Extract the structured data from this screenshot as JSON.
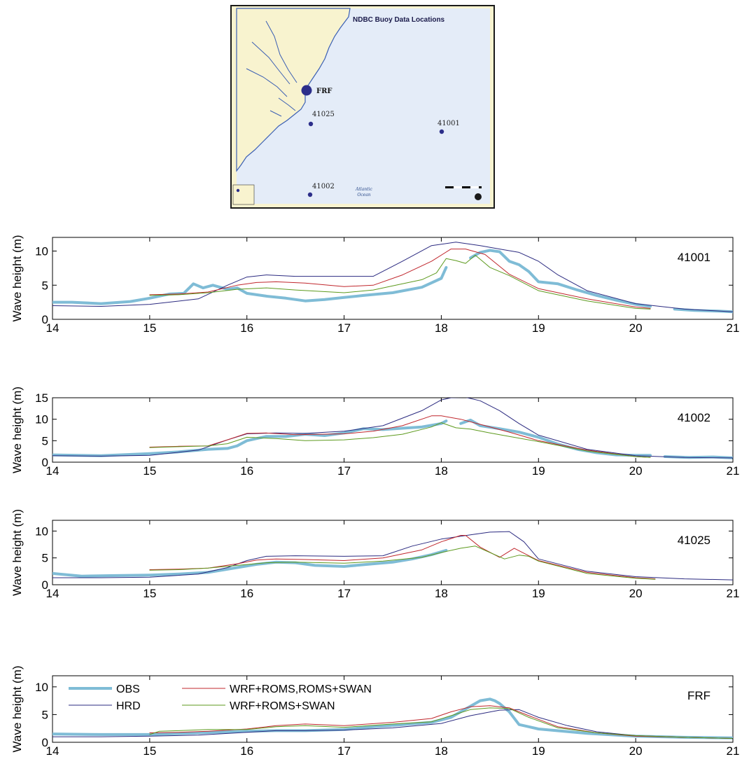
{
  "map": {
    "title": "NDBC Buoy Data Locations",
    "ocean_label_1": "Atlantic",
    "ocean_label_2": "Ocean",
    "stations": [
      {
        "id": "FRF",
        "label": "FRF",
        "size": "large"
      },
      {
        "id": "41025",
        "label": "41025",
        "size": "small"
      },
      {
        "id": "41001",
        "label": "41001",
        "size": "small"
      },
      {
        "id": "41002",
        "label": "41002",
        "size": "small"
      }
    ],
    "colors": {
      "land": "#f8f3cf",
      "water": "#e4ecf8",
      "coast": "#3b5fb3",
      "station": "#2c2e8a",
      "frame": "#1a1a1a"
    }
  },
  "chart_data": [
    {
      "type": "line",
      "station": "41001",
      "ylabel": "Wave height (m)",
      "xlim": [
        14,
        21
      ],
      "ylim": [
        0,
        12
      ],
      "xticks": [
        14,
        15,
        16,
        17,
        18,
        19,
        20,
        21
      ],
      "yticks": [
        0,
        5,
        10
      ],
      "series": [
        {
          "name": "OBS",
          "color": "#7fbcd6",
          "width": 4,
          "x": [
            14,
            14.2,
            14.5,
            14.8,
            15.0,
            15.2,
            15.35,
            15.45,
            15.55,
            15.65,
            15.8,
            15.9,
            16.0,
            16.2,
            16.4,
            16.6,
            16.8,
            17.0,
            17.2,
            17.5,
            17.8,
            18.0,
            18.05
          ],
          "y": [
            2.5,
            2.5,
            2.3,
            2.6,
            3.1,
            3.7,
            3.8,
            5.2,
            4.6,
            5.0,
            4.4,
            4.6,
            3.8,
            3.4,
            3.1,
            2.7,
            2.9,
            3.2,
            3.5,
            3.9,
            4.7,
            6.0,
            7.6
          ]
        },
        {
          "name": "OBS",
          "color": "#7fbcd6",
          "width": 4,
          "x": [
            18.3,
            18.4,
            18.5,
            18.6,
            18.7,
            18.8,
            18.9,
            19.0,
            19.2,
            19.4,
            19.6,
            19.8,
            20.0,
            20.15
          ],
          "y": [
            9.0,
            9.8,
            10.1,
            9.9,
            8.5,
            8.0,
            7.0,
            5.5,
            5.2,
            4.3,
            3.5,
            2.8,
            2.2,
            1.9
          ]
        },
        {
          "name": "OBS",
          "color": "#7fbcd6",
          "width": 4,
          "x": [
            20.4,
            20.6,
            20.85,
            21.0
          ],
          "y": [
            1.5,
            1.3,
            1.2,
            1.1
          ]
        },
        {
          "name": "HRD",
          "color": "#2b2a80",
          "width": 1,
          "x": [
            14,
            14.5,
            15.0,
            15.5,
            15.8,
            16.0,
            16.2,
            16.5,
            17.0,
            17.3,
            17.6,
            17.9,
            18.15,
            18.4,
            18.6,
            18.8,
            19.0,
            19.2,
            19.5,
            20.0,
            20.5,
            21.0
          ],
          "y": [
            2.0,
            1.9,
            2.2,
            3.0,
            5.0,
            6.2,
            6.5,
            6.3,
            6.3,
            6.3,
            8.5,
            10.8,
            11.3,
            10.8,
            10.3,
            9.8,
            8.5,
            6.5,
            4.2,
            2.3,
            1.5,
            1.1
          ]
        },
        {
          "name": "WRF+ROMS,ROMS+SWAN",
          "color": "#c0272d",
          "width": 1,
          "x": [
            15.0,
            15.3,
            15.6,
            15.9,
            16.1,
            16.3,
            16.6,
            17.0,
            17.3,
            17.6,
            17.9,
            18.1,
            18.25,
            18.45,
            18.7,
            19.0,
            19.5,
            20.0,
            20.15
          ],
          "y": [
            3.6,
            3.7,
            4.0,
            5.0,
            5.4,
            5.5,
            5.3,
            4.8,
            5.0,
            6.5,
            8.5,
            10.3,
            10.3,
            9.5,
            6.6,
            4.5,
            3.0,
            1.8,
            1.6
          ]
        },
        {
          "name": "WRF+ROMS+SWAN",
          "color": "#5d9a1e",
          "width": 1,
          "x": [
            15.0,
            15.3,
            15.6,
            15.9,
            16.2,
            16.5,
            17.0,
            17.3,
            17.6,
            17.8,
            17.95,
            18.05,
            18.15,
            18.25,
            18.35,
            18.5,
            18.7,
            19.0,
            19.5,
            20.0,
            20.15
          ],
          "y": [
            3.5,
            3.6,
            3.9,
            4.4,
            4.6,
            4.3,
            3.9,
            4.3,
            5.2,
            5.8,
            6.8,
            8.9,
            8.6,
            8.2,
            9.4,
            7.6,
            6.4,
            4.2,
            2.7,
            1.6,
            1.5
          ]
        }
      ]
    },
    {
      "type": "line",
      "station": "41002",
      "ylabel": "Wave height (m)",
      "xlim": [
        14,
        21
      ],
      "ylim": [
        0,
        15
      ],
      "xticks": [
        14,
        15,
        16,
        17,
        18,
        19,
        20,
        21
      ],
      "yticks": [
        0,
        5,
        10,
        15
      ],
      "series": [
        {
          "name": "OBS",
          "color": "#7fbcd6",
          "width": 4,
          "x": [
            14,
            14.5,
            15.0,
            15.3,
            15.6,
            15.8,
            15.9,
            16.0,
            16.2,
            16.4,
            16.6,
            16.8,
            17.0,
            17.2,
            17.4,
            17.6,
            17.8,
            18.0,
            18.05
          ],
          "y": [
            1.7,
            1.5,
            2.0,
            2.4,
            3.0,
            3.2,
            3.8,
            5.0,
            6.0,
            6.0,
            6.5,
            6.2,
            6.8,
            7.8,
            7.6,
            7.9,
            8.2,
            9.0,
            9.6
          ]
        },
        {
          "name": "OBS",
          "color": "#7fbcd6",
          "width": 4,
          "x": [
            18.2,
            18.3,
            18.4,
            18.6,
            18.8,
            19.0,
            19.2,
            19.4,
            19.6,
            19.8,
            20.0,
            20.15
          ],
          "y": [
            9.0,
            9.8,
            8.5,
            7.8,
            7.0,
            5.8,
            4.2,
            3.0,
            2.2,
            1.7,
            1.6,
            1.6
          ]
        },
        {
          "name": "OBS",
          "color": "#7fbcd6",
          "width": 4,
          "x": [
            20.3,
            20.55,
            20.8,
            21.0
          ],
          "y": [
            1.3,
            1.1,
            1.2,
            1.0
          ]
        },
        {
          "name": "HRD",
          "color": "#2b2a80",
          "width": 1,
          "x": [
            14,
            14.5,
            15.0,
            15.5,
            15.8,
            16.0,
            16.3,
            16.6,
            17.0,
            17.4,
            17.8,
            18.0,
            18.1,
            18.25,
            18.4,
            18.6,
            18.8,
            19.0,
            19.5,
            20.0,
            20.5,
            21.0
          ],
          "y": [
            1.5,
            1.4,
            1.6,
            2.8,
            5.2,
            6.6,
            6.8,
            6.7,
            7.2,
            8.5,
            12.0,
            14.5,
            15.0,
            15.1,
            14.3,
            12.0,
            9.0,
            6.3,
            3.0,
            1.5,
            1.1,
            1.0
          ]
        },
        {
          "name": "WRF+ROMS,ROMS+SWAN",
          "color": "#c0272d",
          "width": 1,
          "x": [
            15.0,
            15.3,
            15.6,
            15.8,
            16.0,
            16.2,
            16.5,
            17.0,
            17.3,
            17.6,
            17.9,
            18.0,
            18.2,
            18.4,
            18.7,
            19.0,
            19.5,
            20.0,
            20.15
          ],
          "y": [
            3.5,
            3.7,
            3.8,
            5.2,
            6.7,
            6.8,
            6.4,
            6.6,
            7.2,
            8.5,
            10.8,
            10.8,
            10.0,
            8.8,
            7.0,
            5.0,
            2.8,
            1.3,
            1.1
          ]
        },
        {
          "name": "WRF+ROMS+SWAN",
          "color": "#5d9a1e",
          "width": 1,
          "x": [
            15.0,
            15.3,
            15.6,
            15.8,
            16.0,
            16.3,
            16.6,
            17.0,
            17.3,
            17.6,
            17.9,
            18.0,
            18.15,
            18.3,
            18.5,
            18.7,
            19.0,
            19.5,
            20.0,
            20.15
          ],
          "y": [
            3.4,
            3.6,
            3.8,
            4.3,
            5.8,
            5.5,
            5.0,
            5.2,
            5.7,
            6.5,
            8.2,
            9.2,
            8.0,
            7.7,
            6.8,
            6.0,
            4.8,
            2.6,
            1.3,
            1.1
          ]
        }
      ]
    },
    {
      "type": "line",
      "station": "41025",
      "ylabel": "Wave height (m)",
      "xlim": [
        14,
        21
      ],
      "ylim": [
        0,
        12
      ],
      "xticks": [
        14,
        15,
        16,
        17,
        18,
        19,
        20,
        21
      ],
      "yticks": [
        0,
        5,
        10
      ],
      "series": [
        {
          "name": "OBS",
          "color": "#7fbcd6",
          "width": 4,
          "x": [
            14,
            14.3,
            14.6,
            15.0,
            15.3,
            15.6,
            15.9,
            16.1,
            16.3,
            16.5,
            16.7,
            17.0,
            17.3,
            17.5,
            17.7,
            17.9,
            18.05
          ],
          "y": [
            2.1,
            1.6,
            1.7,
            1.8,
            2.0,
            2.3,
            3.2,
            3.8,
            4.2,
            4.1,
            3.6,
            3.4,
            3.9,
            4.2,
            4.8,
            5.6,
            6.4
          ]
        },
        {
          "name": "HRD",
          "color": "#2b2a80",
          "width": 1,
          "x": [
            14,
            14.5,
            15.0,
            15.5,
            15.8,
            16.0,
            16.2,
            16.5,
            17.0,
            17.4,
            17.7,
            18.0,
            18.3,
            18.5,
            18.7,
            18.85,
            19.0,
            19.5,
            20.0,
            20.5,
            21.0
          ],
          "y": [
            1.3,
            1.3,
            1.4,
            2.0,
            3.2,
            4.5,
            5.3,
            5.4,
            5.3,
            5.4,
            7.2,
            8.5,
            9.3,
            9.8,
            9.9,
            8.0,
            4.8,
            2.5,
            1.5,
            1.1,
            0.9
          ]
        },
        {
          "name": "WRF+ROMS,ROMS+SWAN",
          "color": "#c0272d",
          "width": 1,
          "x": [
            15.0,
            15.3,
            15.6,
            15.9,
            16.1,
            16.3,
            16.6,
            17.0,
            17.4,
            17.8,
            18.0,
            18.2,
            18.25,
            18.4,
            18.6,
            18.75,
            18.9,
            19.0,
            19.5,
            20.0,
            20.2
          ],
          "y": [
            2.8,
            2.9,
            3.1,
            3.9,
            4.6,
            4.8,
            4.7,
            4.5,
            5.0,
            6.5,
            8.0,
            9.2,
            9.2,
            7.0,
            5.1,
            6.8,
            5.4,
            4.5,
            2.3,
            1.3,
            1.1
          ]
        },
        {
          "name": "WRF+ROMS+SWAN",
          "color": "#5d9a1e",
          "width": 1,
          "x": [
            15.0,
            15.3,
            15.6,
            15.9,
            16.2,
            16.5,
            17.0,
            17.4,
            17.8,
            18.0,
            18.2,
            18.35,
            18.5,
            18.65,
            18.8,
            18.9,
            19.0,
            19.5,
            20.0,
            20.2
          ],
          "y": [
            2.7,
            2.8,
            3.1,
            3.6,
            4.1,
            4.2,
            4.0,
            4.4,
            5.1,
            6.0,
            6.8,
            7.2,
            6.0,
            4.8,
            5.5,
            5.3,
            4.4,
            2.1,
            1.2,
            1.0
          ]
        }
      ]
    },
    {
      "type": "line",
      "station": "FRF",
      "ylabel": "Wave height (m)",
      "xlim": [
        14,
        21
      ],
      "ylim": [
        0,
        12
      ],
      "xticks": [
        14,
        15,
        16,
        17,
        18,
        19,
        20,
        21
      ],
      "yticks": [
        0,
        5,
        10
      ],
      "legend": {
        "placement": "top-left",
        "entries": [
          {
            "name": "OBS",
            "color": "#7fbcd6",
            "width": 4
          },
          {
            "name": "WRF+ROMS,ROMS+SWAN",
            "color": "#c0272d",
            "width": 1
          },
          {
            "name": "HRD",
            "color": "#2b2a80",
            "width": 1
          },
          {
            "name": "WRF+ROMS+SWAN",
            "color": "#5d9a1e",
            "width": 1
          }
        ]
      },
      "series": [
        {
          "name": "OBS",
          "color": "#7fbcd6",
          "width": 4,
          "x": [
            14,
            14.5,
            15.0,
            15.5,
            16.0,
            16.3,
            16.6,
            17.0,
            17.3,
            17.6,
            17.9,
            18.1,
            18.3,
            18.4,
            18.5,
            18.55,
            18.6,
            18.7,
            18.8,
            18.9,
            19.0,
            19.5,
            20.0,
            20.5,
            21.0
          ],
          "y": [
            1.5,
            1.4,
            1.4,
            1.7,
            2.0,
            2.1,
            2.1,
            2.3,
            2.8,
            3.2,
            3.6,
            4.5,
            6.5,
            7.5,
            7.8,
            7.5,
            7.0,
            5.5,
            3.2,
            2.8,
            2.4,
            1.6,
            1.1,
            0.9,
            0.8
          ]
        },
        {
          "name": "HRD",
          "color": "#2b2a80",
          "width": 1,
          "x": [
            14,
            14.5,
            15.0,
            15.5,
            16.0,
            16.3,
            16.6,
            17.0,
            17.5,
            18.0,
            18.3,
            18.6,
            18.8,
            19.0,
            19.3,
            19.6,
            20.0,
            20.5,
            21.0
          ],
          "y": [
            1.0,
            1.0,
            1.1,
            1.3,
            1.8,
            2.1,
            2.1,
            2.2,
            2.6,
            3.4,
            4.8,
            5.8,
            5.9,
            4.5,
            3.0,
            1.9,
            1.2,
            0.9,
            0.7
          ]
        },
        {
          "name": "WRF+ROMS,ROMS+SWAN",
          "color": "#c0272d",
          "width": 1,
          "x": [
            15.0,
            15.3,
            15.6,
            16.0,
            16.3,
            16.6,
            17.0,
            17.5,
            17.9,
            18.1,
            18.3,
            18.5,
            18.7,
            18.9,
            19.2,
            19.6,
            20.0,
            20.5,
            21.0
          ],
          "y": [
            1.7,
            1.8,
            2.0,
            2.4,
            3.0,
            3.3,
            3.0,
            3.6,
            4.3,
            5.5,
            6.4,
            6.6,
            6.2,
            4.8,
            2.8,
            1.7,
            1.1,
            0.9,
            0.7
          ]
        },
        {
          "name": "WRF+ROMS+SWAN",
          "color": "#5d9a1e",
          "width": 1,
          "x": [
            15.0,
            15.1,
            15.3,
            15.6,
            16.0,
            16.3,
            16.6,
            17.0,
            17.5,
            17.9,
            18.1,
            18.3,
            18.5,
            18.7,
            18.9,
            19.2,
            19.6,
            20.0,
            20.5,
            21.0
          ],
          "y": [
            1.4,
            2.0,
            2.1,
            2.3,
            2.3,
            2.8,
            3.0,
            2.7,
            3.3,
            3.7,
            4.8,
            5.9,
            6.2,
            6.1,
            4.5,
            2.6,
            1.7,
            1.2,
            0.9,
            0.7
          ]
        }
      ]
    }
  ]
}
